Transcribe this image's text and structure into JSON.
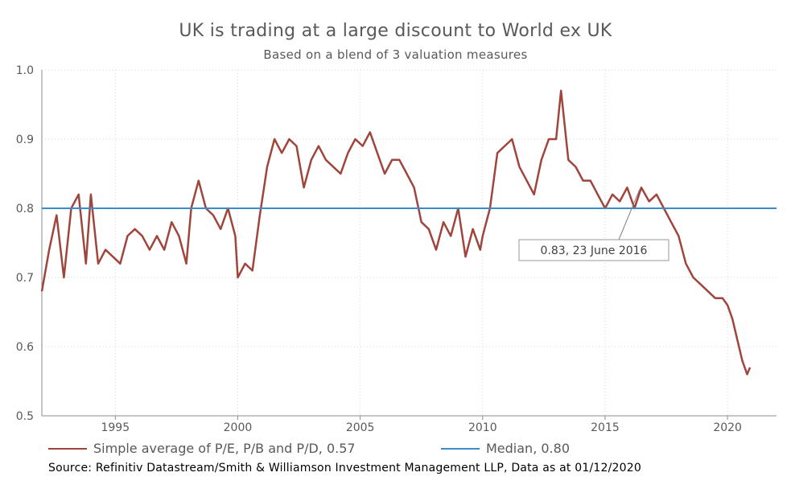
{
  "chart_data": {
    "type": "line",
    "title": "UK is trading at a large discount to World ex UK",
    "subtitle": "Based on a blend of 3 valuation measures",
    "xlabel": "",
    "ylabel": "",
    "xlim": [
      1992.0,
      2022.0
    ],
    "ylim": [
      0.5,
      1.0
    ],
    "x_ticks": [
      "1995",
      "2000",
      "2005",
      "2010",
      "2015",
      "2020"
    ],
    "y_ticks": [
      "0.5",
      "0.6",
      "0.7",
      "0.8",
      "0.9",
      "1.0"
    ],
    "grid": true,
    "legend_position": "bottom",
    "series": [
      {
        "name": "Simple average of P/E, P/B and P/D, 0.57",
        "color": "#A0453C",
        "x": [
          1992.0,
          1992.3,
          1992.6,
          1992.9,
          1993.2,
          1993.5,
          1993.8,
          1994.0,
          1994.3,
          1994.6,
          1994.9,
          1995.2,
          1995.5,
          1995.8,
          1996.1,
          1996.4,
          1996.7,
          1997.0,
          1997.3,
          1997.6,
          1997.9,
          1998.1,
          1998.4,
          1998.7,
          1999.0,
          1999.3,
          1999.6,
          1999.9,
          2000.0,
          2000.3,
          2000.6,
          2000.9,
          2001.2,
          2001.5,
          2001.8,
          2002.1,
          2002.4,
          2002.7,
          2003.0,
          2003.3,
          2003.6,
          2003.9,
          2004.2,
          2004.5,
          2004.8,
          2005.1,
          2005.4,
          2005.7,
          2006.0,
          2006.3,
          2006.6,
          2006.9,
          2007.2,
          2007.5,
          2007.8,
          2008.1,
          2008.4,
          2008.7,
          2009.0,
          2009.3,
          2009.6,
          2009.9,
          2010.0,
          2010.3,
          2010.6,
          2010.9,
          2011.2,
          2011.5,
          2011.8,
          2012.1,
          2012.4,
          2012.7,
          2013.0,
          2013.2,
          2013.5,
          2013.8,
          2014.1,
          2014.4,
          2014.7,
          2015.0,
          2015.3,
          2015.6,
          2015.9,
          2016.2,
          2016.48,
          2016.8,
          2017.1,
          2017.4,
          2017.7,
          2018.0,
          2018.3,
          2018.6,
          2018.9,
          2019.2,
          2019.5,
          2019.8,
          2020.0,
          2020.2,
          2020.4,
          2020.6,
          2020.8,
          2020.92
        ],
        "values": [
          0.68,
          0.74,
          0.79,
          0.7,
          0.8,
          0.82,
          0.72,
          0.82,
          0.72,
          0.74,
          0.73,
          0.72,
          0.76,
          0.77,
          0.76,
          0.74,
          0.76,
          0.74,
          0.78,
          0.76,
          0.72,
          0.8,
          0.84,
          0.8,
          0.79,
          0.77,
          0.8,
          0.76,
          0.7,
          0.72,
          0.71,
          0.79,
          0.86,
          0.9,
          0.88,
          0.9,
          0.89,
          0.83,
          0.87,
          0.89,
          0.87,
          0.86,
          0.85,
          0.88,
          0.9,
          0.89,
          0.91,
          0.88,
          0.85,
          0.87,
          0.87,
          0.85,
          0.83,
          0.78,
          0.77,
          0.74,
          0.78,
          0.76,
          0.8,
          0.73,
          0.77,
          0.74,
          0.76,
          0.8,
          0.88,
          0.89,
          0.9,
          0.86,
          0.84,
          0.82,
          0.87,
          0.9,
          0.9,
          0.97,
          0.87,
          0.86,
          0.84,
          0.84,
          0.82,
          0.8,
          0.82,
          0.81,
          0.83,
          0.8,
          0.83,
          0.81,
          0.82,
          0.8,
          0.78,
          0.76,
          0.72,
          0.7,
          0.69,
          0.68,
          0.67,
          0.67,
          0.66,
          0.64,
          0.61,
          0.58,
          0.56,
          0.57
        ]
      },
      {
        "name": "Median, 0.80",
        "color": "#3A8DC9",
        "x": [
          1992.0,
          2022.0
        ],
        "values": [
          0.8,
          0.8
        ]
      }
    ],
    "annotations": [
      {
        "text": "0.83, 23 June 2016",
        "x": 2016.48,
        "y": 0.83
      }
    ]
  },
  "legend": {
    "items": [
      {
        "label": "Simple average of P/E, P/B and P/D, 0.57",
        "color": "#A0453C"
      },
      {
        "label": "Median, 0.80",
        "color": "#3A8DC9"
      }
    ]
  },
  "source": "Source: Refinitiv Datastream/Smith & Williamson Investment Management LLP, Data as at 01/12/2020"
}
